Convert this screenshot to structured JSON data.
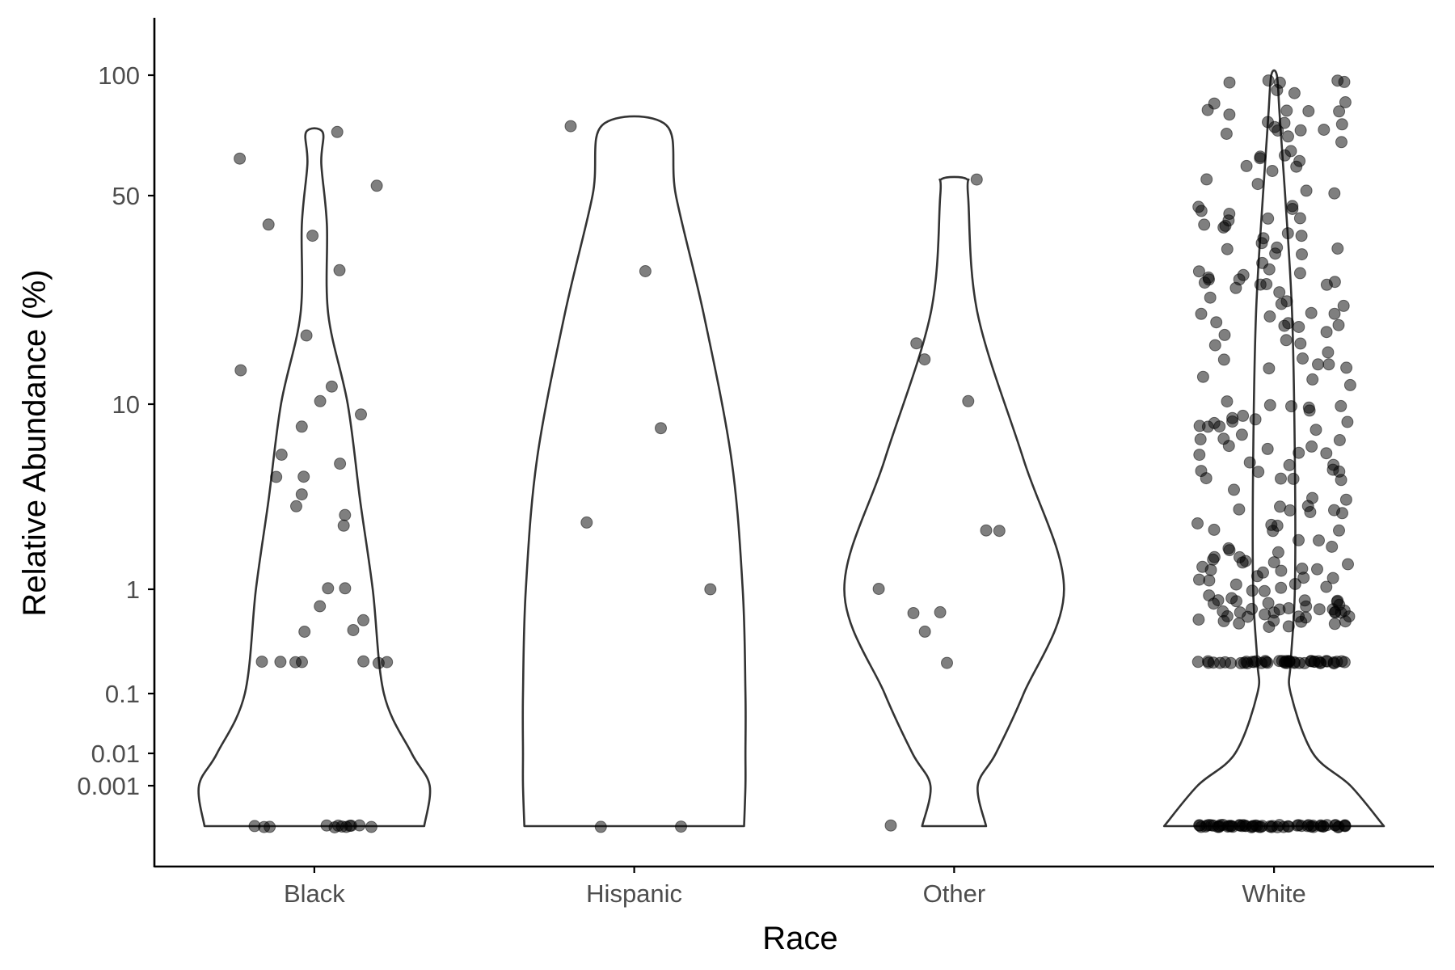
{
  "chart_data": {
    "type": "violin",
    "xlabel": "Race",
    "ylabel": "Relative Abundance (%)",
    "categories": [
      "Black",
      "Hispanic",
      "Other",
      "White"
    ],
    "y_scale": "pseudo-log",
    "y_ticks": [
      {
        "value": 100,
        "label": "100"
      },
      {
        "value": 50,
        "label": "50"
      },
      {
        "value": 10,
        "label": "10"
      },
      {
        "value": 1,
        "label": "1"
      },
      {
        "value": 0.1,
        "label": "0.1"
      },
      {
        "value": 0.01,
        "label": "0.01"
      },
      {
        "value": 0.001,
        "label": "0.001"
      }
    ],
    "grid": false,
    "legend": "none",
    "violins": [
      {
        "category": "Black",
        "min": 0,
        "max": 72,
        "profile": [
          [
            0,
            0.79
          ],
          [
            0.001,
            0.83
          ],
          [
            0.01,
            0.7
          ],
          [
            0.1,
            0.5
          ],
          [
            1,
            0.42
          ],
          [
            3,
            0.33
          ],
          [
            10,
            0.24
          ],
          [
            20,
            0.1
          ],
          [
            40,
            0.09
          ],
          [
            60,
            0.05
          ],
          [
            72,
            0.06
          ]
        ]
      },
      {
        "category": "Hispanic",
        "min": 0,
        "max": 75,
        "profile": [
          [
            0,
            0.79
          ],
          [
            0.001,
            0.8
          ],
          [
            0.01,
            0.8
          ],
          [
            0.1,
            0.8
          ],
          [
            1,
            0.78
          ],
          [
            5,
            0.7
          ],
          [
            20,
            0.5
          ],
          [
            50,
            0.3
          ],
          [
            75,
            0.23
          ]
        ]
      },
      {
        "category": "Other",
        "min": 0,
        "max": 55,
        "profile": [
          [
            0,
            0.23
          ],
          [
            0.001,
            0.17
          ],
          [
            0.01,
            0.3
          ],
          [
            0.1,
            0.5
          ],
          [
            1,
            0.79
          ],
          [
            5,
            0.5
          ],
          [
            20,
            0.17
          ],
          [
            50,
            0.1
          ],
          [
            55,
            0.09
          ]
        ]
      },
      {
        "category": "White",
        "min": 0,
        "max": 100,
        "profile": [
          [
            0,
            0.79
          ],
          [
            0.001,
            0.55
          ],
          [
            0.01,
            0.28
          ],
          [
            0.1,
            0.12
          ],
          [
            0.2,
            0.12
          ],
          [
            1,
            0.15
          ],
          [
            5,
            0.15
          ],
          [
            20,
            0.13
          ],
          [
            50,
            0.08
          ],
          [
            80,
            0.04
          ],
          [
            100,
            0.02
          ]
        ]
      }
    ],
    "points": {
      "Black": [
        [
          0,
          0
        ],
        [
          0,
          0
        ],
        [
          0,
          0
        ],
        [
          0,
          0
        ],
        [
          0,
          0
        ],
        [
          0,
          0
        ],
        [
          0,
          0
        ],
        [
          0,
          0
        ],
        [
          0,
          0
        ],
        [
          0,
          0
        ],
        [
          0,
          0
        ],
        [
          0,
          0
        ],
        [
          0.2,
          0
        ],
        [
          0.2,
          0
        ],
        [
          0.2,
          0
        ],
        [
          0.2,
          0
        ],
        [
          0.2,
          0
        ],
        [
          0.2,
          0
        ],
        [
          0.2,
          0
        ],
        [
          0.4,
          0
        ],
        [
          0.4,
          0
        ],
        [
          0.5,
          0
        ],
        [
          0.7,
          0
        ],
        [
          1,
          0
        ],
        [
          1,
          0
        ],
        [
          2.2,
          0
        ],
        [
          2.5,
          0
        ],
        [
          2.8,
          0
        ],
        [
          3.3,
          0
        ],
        [
          4,
          0
        ],
        [
          4,
          0
        ],
        [
          4.7,
          0
        ],
        [
          5.3,
          0
        ],
        [
          7.5,
          0
        ],
        [
          8.8,
          0
        ],
        [
          10.3,
          0
        ],
        [
          11.5,
          0
        ],
        [
          13,
          0
        ],
        [
          17,
          0
        ],
        [
          28,
          0
        ],
        [
          37,
          0
        ],
        [
          40,
          0
        ],
        [
          53,
          0
        ],
        [
          62,
          0
        ],
        [
          72,
          0
        ]
      ],
      "Hispanic": [
        [
          0,
          0
        ],
        [
          0,
          0
        ],
        [
          1,
          0
        ],
        [
          2.3,
          0
        ],
        [
          7.5,
          0
        ],
        [
          28,
          0
        ],
        [
          75,
          0
        ]
      ],
      "Other": [
        [
          0,
          0
        ],
        [
          0.2,
          0
        ],
        [
          0.4,
          0
        ],
        [
          0.6,
          0
        ],
        [
          0.6,
          0
        ],
        [
          1,
          0
        ],
        [
          2.1,
          0
        ],
        [
          2.1,
          0
        ],
        [
          10.3,
          0
        ],
        [
          14,
          0
        ],
        [
          16,
          0
        ],
        [
          55,
          0
        ]
      ]
    },
    "white_points_note": ""
  }
}
